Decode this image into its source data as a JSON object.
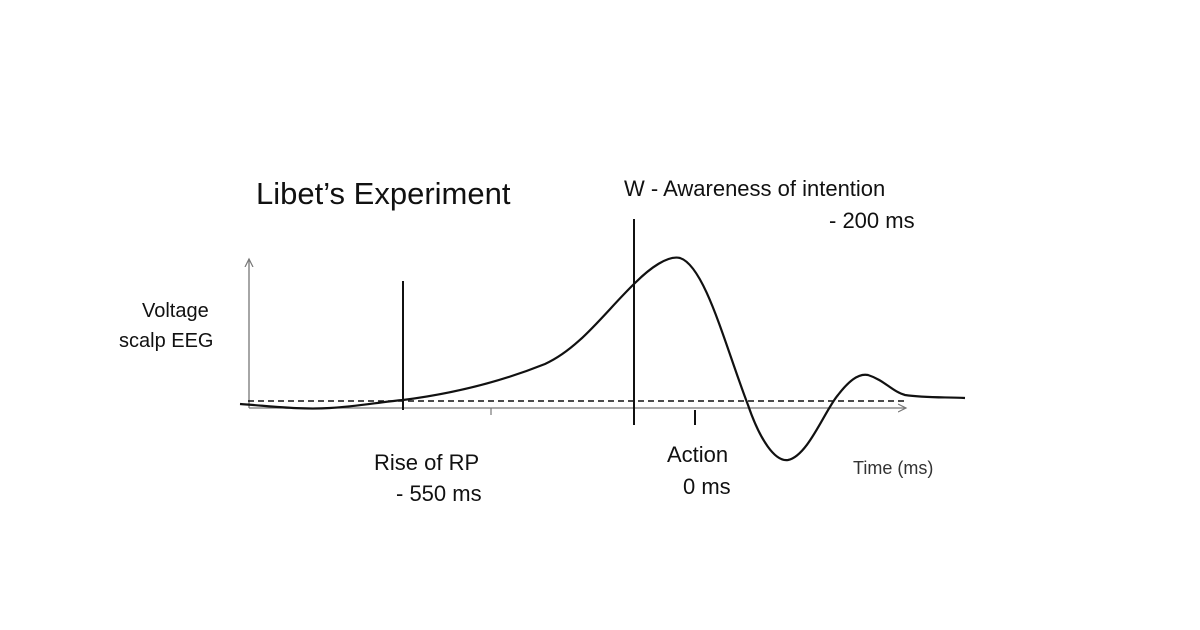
{
  "title": "Libet’s Experiment",
  "y_axis_label": [
    "Voltage",
    "scalp EEG"
  ],
  "x_axis_label": "Time (ms)",
  "markers": {
    "w": {
      "label": "W - Awareness of intention",
      "time_text": "- 200 ms",
      "time_ms": -200
    },
    "rp": {
      "label": "Rise of RP",
      "time_text": "- 550 ms",
      "time_ms": -550
    },
    "action": {
      "label": "Action",
      "time_text": "0 ms",
      "time_ms": 0
    }
  },
  "colors": {
    "line": "#111111",
    "axis": "#777777",
    "background": "#ffffff"
  }
}
